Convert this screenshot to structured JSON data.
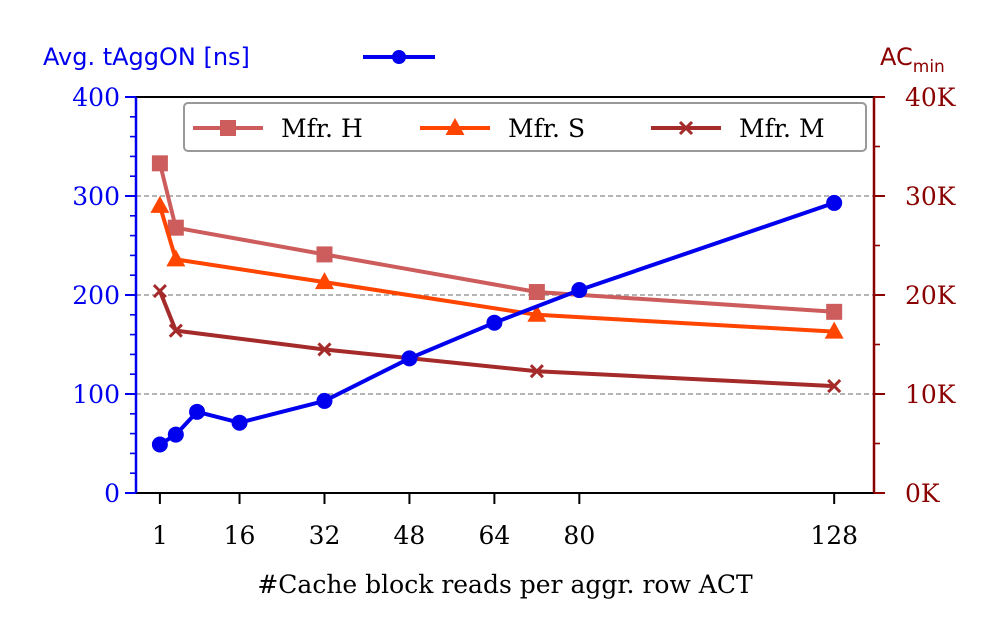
{
  "chart_data": {
    "type": "line",
    "xlabel": "#Cache block reads per aggr. row ACT",
    "x_ticks": [
      1,
      16,
      32,
      48,
      64,
      80,
      128
    ],
    "left_axis": {
      "label": "Avg. tAggON [ns]",
      "ylim": [
        0,
        400
      ],
      "ticks": [
        0,
        100,
        200,
        300,
        400
      ],
      "tick_labels": [
        "0",
        "100",
        "200",
        "300",
        "400"
      ],
      "color": "#0000ee"
    },
    "right_axis": {
      "label_main": "AC",
      "label_sub": "min",
      "ylim": [
        0,
        40000
      ],
      "ticks": [
        0,
        10000,
        20000,
        30000,
        40000
      ],
      "tick_labels": [
        "0K",
        "10K",
        "20K",
        "30K",
        "40K"
      ],
      "color": "#8b0000"
    },
    "grid": "horizontal dashed at major left ticks",
    "series": [
      {
        "name": "Avg. tAggON [ns]",
        "axis": "left",
        "marker": "circle",
        "color": "#0000ee",
        "x": [
          1,
          4,
          8,
          16,
          32,
          48,
          64,
          80,
          128
        ],
        "y": [
          49,
          59,
          82,
          71,
          93,
          136,
          172,
          205,
          293
        ]
      },
      {
        "name": "Mfr. H",
        "axis": "right",
        "marker": "square",
        "color": "#cd5c5c",
        "x": [
          1,
          4,
          32,
          72,
          128
        ],
        "y": [
          33300,
          26800,
          24100,
          20300,
          18300
        ]
      },
      {
        "name": "Mfr. S",
        "axis": "right",
        "marker": "triangle",
        "color": "#ff4500",
        "x": [
          1,
          4,
          32,
          72,
          128
        ],
        "y": [
          29000,
          23600,
          21300,
          18000,
          16300
        ]
      },
      {
        "name": "Mfr. M",
        "axis": "right",
        "marker": "x",
        "color": "#a52a2a",
        "x": [
          1,
          4,
          32,
          72,
          128
        ],
        "y": [
          20400,
          16400,
          14500,
          12300,
          10800
        ]
      }
    ],
    "legend": {
      "placement": "top",
      "entries": [
        "Mfr. H",
        "Mfr. S",
        "Mfr. M"
      ]
    },
    "left_legend_placement": "above left axis"
  }
}
